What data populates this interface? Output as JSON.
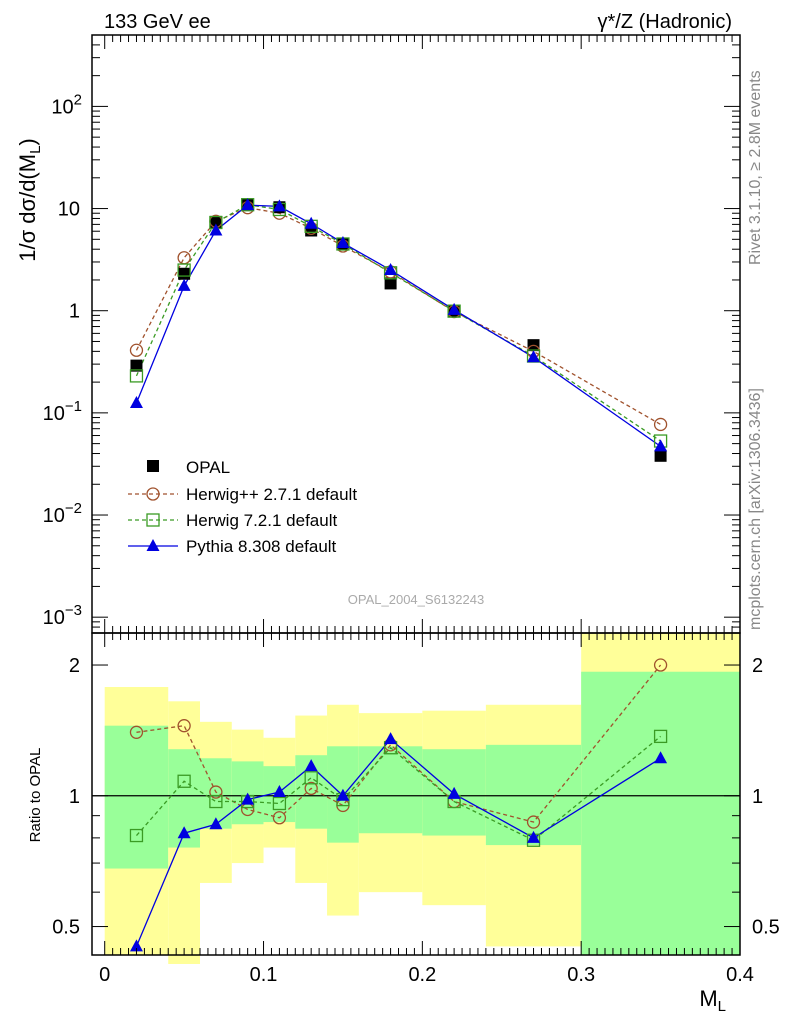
{
  "header": {
    "left": "133 GeV ee",
    "right": "γ*/Z (Hadronic)"
  },
  "side": {
    "top": "Rivet 3.1.10, ≥ 2.8M events",
    "bottom": "mcplots.cern.ch [arXiv:1306.3436]"
  },
  "reference": "OPAL_2004_S6132243",
  "colors": {
    "opal": "#000000",
    "herwigpp": "#a0522d",
    "herwig7": "#3a9b24",
    "pythia": "#0000e0",
    "band_yellow": "#ffff99",
    "band_green": "#99ff99"
  },
  "chart_data": [
    {
      "type": "line",
      "role": "main",
      "ylabel": "1/σ dσ/d(M_L)",
      "yscale": "log",
      "ylim": [
        0.0007,
        500
      ],
      "xlim": [
        -0.008,
        0.4
      ],
      "y_ticks": [
        {
          "v": 0.001,
          "b": "10",
          "e": "−3"
        },
        {
          "v": 0.01,
          "b": "10",
          "e": "−2"
        },
        {
          "v": 0.1,
          "b": "10",
          "e": "−1"
        },
        {
          "v": 1,
          "b": "1",
          "e": ""
        },
        {
          "v": 10,
          "b": "10",
          "e": ""
        },
        {
          "v": 100,
          "b": "10",
          "e": "2"
        }
      ],
      "x": [
        0.02,
        0.05,
        0.07,
        0.09,
        0.11,
        0.13,
        0.15,
        0.18,
        0.22,
        0.27,
        0.35
      ],
      "series": [
        {
          "name": "OPAL",
          "key": "opal",
          "values": [
            0.29,
            2.3,
            7.4,
            11.0,
            10.3,
            6.1,
            4.5,
            1.85,
            1.0,
            0.46,
            0.038
          ]
        },
        {
          "name": "Herwig++ 2.7.1 default",
          "key": "herwigpp",
          "values": [
            0.41,
            3.3,
            7.5,
            10.2,
            9.0,
            6.4,
            4.3,
            2.4,
            0.98,
            0.4,
            0.077
          ]
        },
        {
          "name": "Herwig 7.2.1 default",
          "key": "herwig7",
          "values": [
            0.23,
            2.5,
            7.3,
            10.9,
            9.8,
            6.7,
            4.5,
            2.35,
            0.99,
            0.36,
            0.053
          ]
        },
        {
          "name": "Pythia 8.308 default",
          "key": "pythia",
          "values": [
            0.125,
            1.75,
            6.1,
            10.8,
            10.5,
            7.1,
            4.6,
            2.5,
            1.02,
            0.35,
            0.047
          ]
        }
      ]
    },
    {
      "type": "line",
      "role": "ratio",
      "ylabel": "Ratio to OPAL",
      "xlabel": "M_L",
      "yscale": "log",
      "ylim": [
        0.43,
        2.37
      ],
      "xlim": [
        -0.008,
        0.4
      ],
      "y_ticks": [
        0.5,
        1,
        2
      ],
      "x_ticks": [
        0,
        0.1,
        0.2,
        0.3,
        0.4
      ],
      "x_tick_labels": [
        "0",
        "0.1",
        "0.2",
        "0.3",
        "0.4"
      ],
      "bins": [
        {
          "lo": 0.0,
          "hi": 0.04,
          "g": [
            0.68,
            1.45
          ],
          "y": [
            0.43,
            1.78
          ]
        },
        {
          "lo": 0.04,
          "hi": 0.06,
          "g": [
            0.76,
            1.28
          ],
          "y": [
            0.41,
            1.65
          ]
        },
        {
          "lo": 0.06,
          "hi": 0.08,
          "g": [
            0.84,
            1.22
          ],
          "y": [
            0.63,
            1.48
          ]
        },
        {
          "lo": 0.08,
          "hi": 0.1,
          "g": [
            0.86,
            1.2
          ],
          "y": [
            0.7,
            1.42
          ]
        },
        {
          "lo": 0.1,
          "hi": 0.12,
          "g": [
            0.87,
            1.17
          ],
          "y": [
            0.76,
            1.36
          ]
        },
        {
          "lo": 0.12,
          "hi": 0.14,
          "g": [
            0.84,
            1.24
          ],
          "y": [
            0.63,
            1.53
          ]
        },
        {
          "lo": 0.14,
          "hi": 0.16,
          "g": [
            0.78,
            1.3
          ],
          "y": [
            0.53,
            1.62
          ]
        },
        {
          "lo": 0.16,
          "hi": 0.2,
          "g": [
            0.82,
            1.3
          ],
          "y": [
            0.6,
            1.55
          ]
        },
        {
          "lo": 0.2,
          "hi": 0.24,
          "g": [
            0.81,
            1.28
          ],
          "y": [
            0.56,
            1.57
          ]
        },
        {
          "lo": 0.24,
          "hi": 0.3,
          "g": [
            0.77,
            1.31
          ],
          "y": [
            0.45,
            1.62
          ]
        },
        {
          "lo": 0.3,
          "hi": 0.4,
          "g": [
            0.43,
            1.93
          ],
          "y": [
            0.43,
            2.37
          ]
        }
      ],
      "x": [
        0.02,
        0.05,
        0.07,
        0.09,
        0.11,
        0.13,
        0.15,
        0.18,
        0.22,
        0.27,
        0.35
      ],
      "series": [
        {
          "name": "Herwig++ 2.7.1 default",
          "key": "herwigpp",
          "values": [
            1.4,
            1.45,
            1.02,
            0.93,
            0.89,
            1.04,
            0.95,
            1.31,
            0.97,
            0.87,
            2.0
          ]
        },
        {
          "name": "Herwig 7.2.1 default",
          "key": "herwig7",
          "values": [
            0.81,
            1.08,
            0.97,
            0.97,
            0.96,
            1.1,
            0.98,
            1.29,
            0.97,
            0.79,
            1.37
          ]
        },
        {
          "name": "Pythia 8.308 default",
          "key": "pythia",
          "values": [
            0.45,
            0.82,
            0.86,
            0.98,
            1.02,
            1.17,
            1.0,
            1.35,
            1.01,
            0.8,
            1.22
          ]
        }
      ]
    }
  ]
}
